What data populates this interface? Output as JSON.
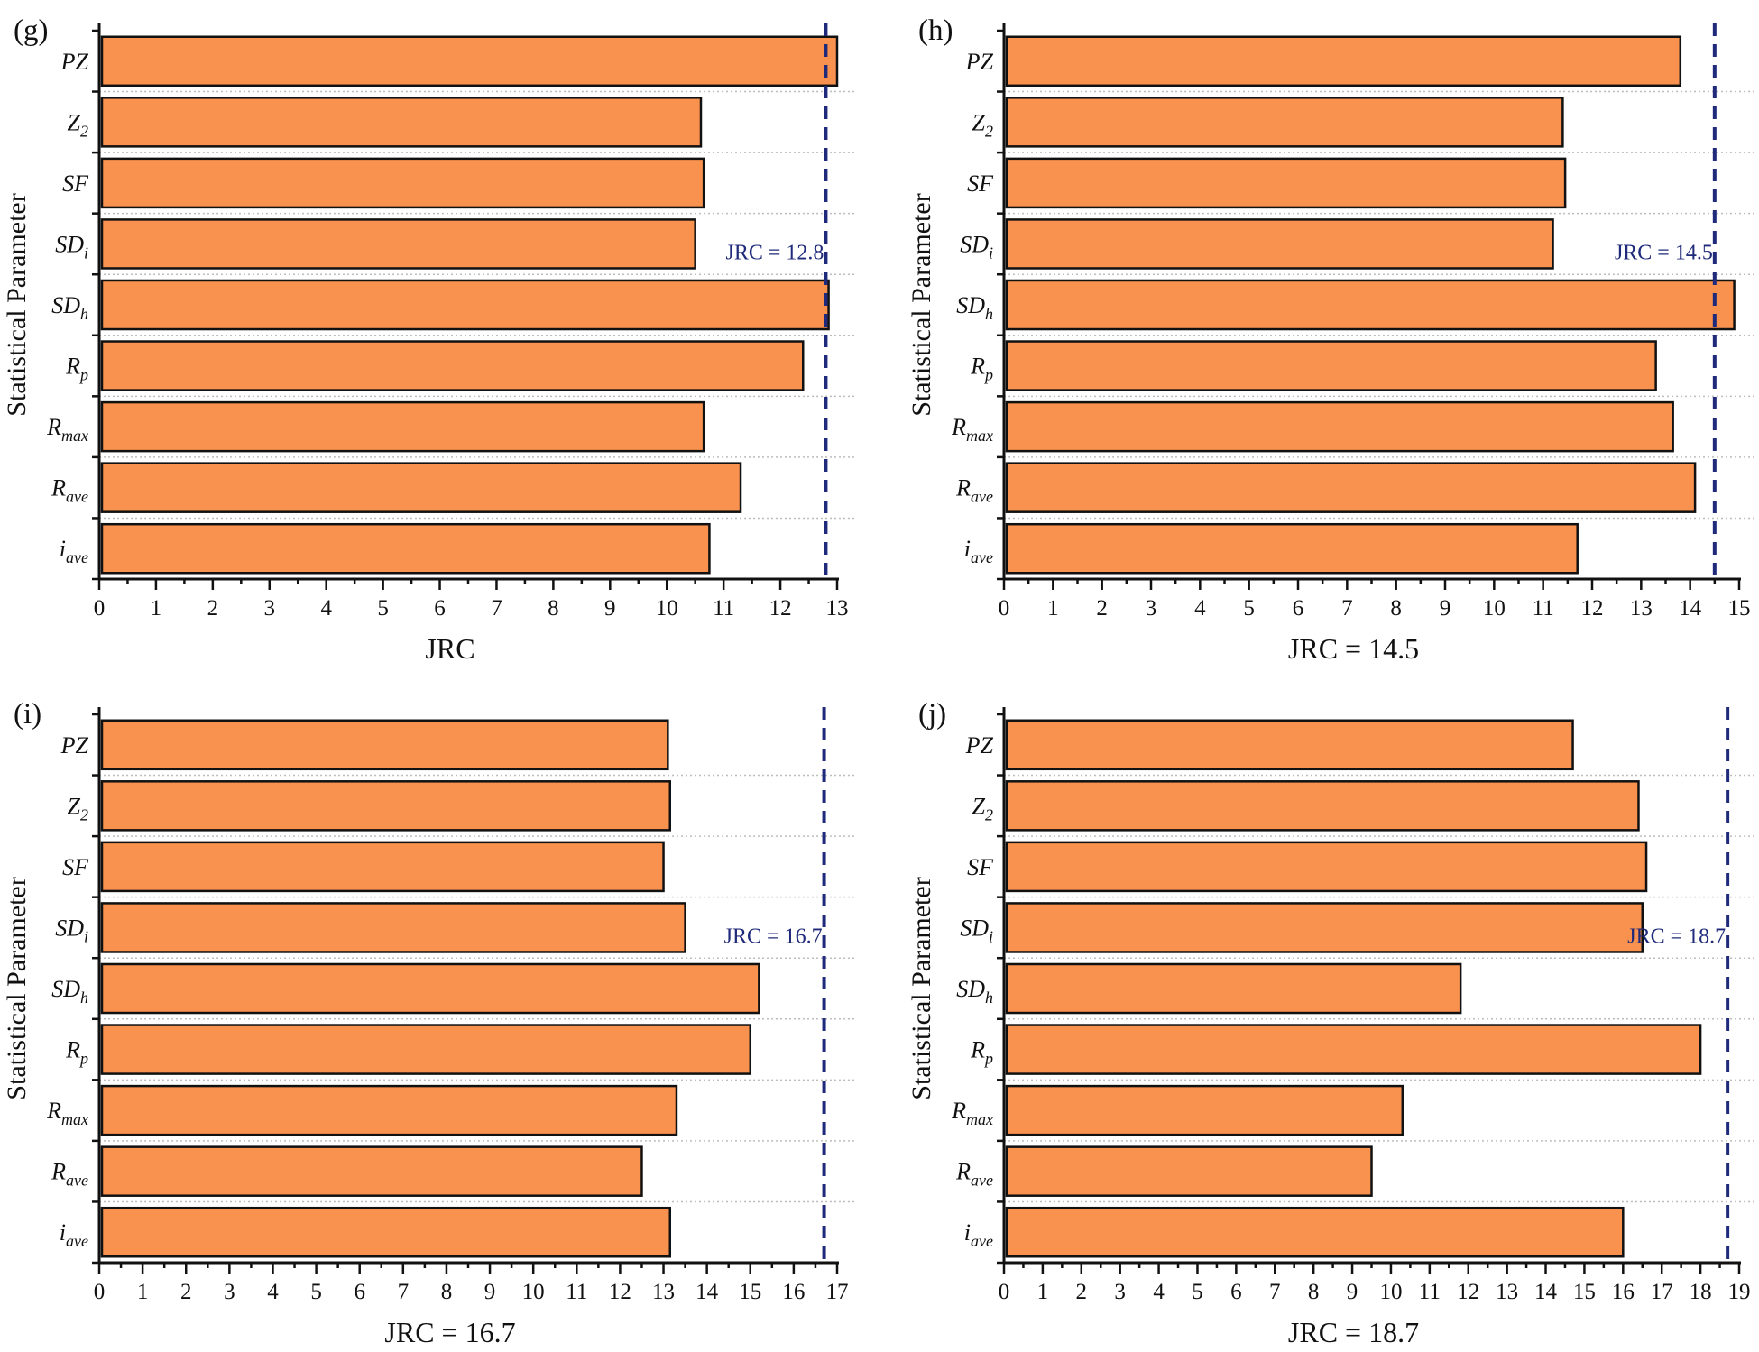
{
  "chart_data": [
    {
      "type": "bar",
      "orientation": "horizontal",
      "panel_label": "(g)",
      "categories": [
        "PZ",
        "Z2",
        "SF",
        "SDi",
        "SDh",
        "Rp",
        "Rmax",
        "Rave",
        "iave"
      ],
      "values": [
        13.0,
        10.6,
        10.65,
        10.5,
        12.85,
        12.4,
        10.65,
        11.3,
        10.75
      ],
      "xlim": [
        0,
        13
      ],
      "xticks": [
        "0",
        "1",
        "2",
        "3",
        "4",
        "5",
        "6",
        "7",
        "8",
        "9",
        "10",
        "11",
        "12",
        "13"
      ],
      "xlabel": "JRC",
      "ylabel": "Statistical Parameter",
      "reference_value": 12.8,
      "reference_label": "JRC = 12.8",
      "bar_color": "#f9924f",
      "reference_color": "#1f2a7a"
    },
    {
      "type": "bar",
      "orientation": "horizontal",
      "panel_label": "(h)",
      "categories": [
        "PZ",
        "Z2",
        "SF",
        "SDi",
        "SDh",
        "Rp",
        "Rmax",
        "Rave",
        "iave"
      ],
      "values": [
        13.8,
        11.4,
        11.45,
        11.2,
        14.9,
        13.3,
        13.65,
        14.1,
        11.7
      ],
      "xlim": [
        0,
        15
      ],
      "xticks": [
        "0",
        "1",
        "2",
        "3",
        "4",
        "5",
        "6",
        "7",
        "8",
        "9",
        "10",
        "11",
        "12",
        "13",
        "14",
        "15"
      ],
      "xlabel": "JRC = 14.5",
      "ylabel": "Statistical Parameter",
      "reference_value": 14.5,
      "reference_label": "JRC = 14.5",
      "bar_color": "#f9924f",
      "reference_color": "#1f2a7a"
    },
    {
      "type": "bar",
      "orientation": "horizontal",
      "panel_label": "(i)",
      "categories": [
        "PZ",
        "Z2",
        "SF",
        "SDi",
        "SDh",
        "Rp",
        "Rmax",
        "Rave",
        "iave"
      ],
      "values": [
        13.1,
        13.15,
        13.0,
        13.5,
        15.2,
        15.0,
        13.3,
        12.5,
        13.15
      ],
      "xlim": [
        0,
        17
      ],
      "xticks": [
        "0",
        "1",
        "2",
        "3",
        "4",
        "5",
        "6",
        "7",
        "8",
        "9",
        "10",
        "11",
        "12",
        "13",
        "14",
        "15",
        "16",
        "17"
      ],
      "xlabel": "JRC = 16.7",
      "ylabel": "Statistical Parameter",
      "reference_value": 16.7,
      "reference_label": "JRC = 16.7",
      "bar_color": "#f9924f",
      "reference_color": "#1f2a7a"
    },
    {
      "type": "bar",
      "orientation": "horizontal",
      "panel_label": "(j)",
      "categories": [
        "PZ",
        "Z2",
        "SF",
        "SDi",
        "SDh",
        "Rp",
        "Rmax",
        "Rave",
        "iave"
      ],
      "values": [
        14.7,
        16.4,
        16.6,
        16.5,
        11.8,
        18.0,
        10.3,
        9.5,
        16.0
      ],
      "xlim": [
        0,
        19
      ],
      "xticks": [
        "0",
        "1",
        "2",
        "3",
        "4",
        "5",
        "6",
        "7",
        "8",
        "9",
        "10",
        "11",
        "12",
        "13",
        "14",
        "15",
        "16",
        "17",
        "18",
        "19"
      ],
      "xlabel": "JRC = 18.7",
      "ylabel": "Statistical Parameter",
      "reference_value": 18.7,
      "reference_label": "JRC = 18.7",
      "bar_color": "#f9924f",
      "reference_color": "#1f2a7a"
    }
  ]
}
